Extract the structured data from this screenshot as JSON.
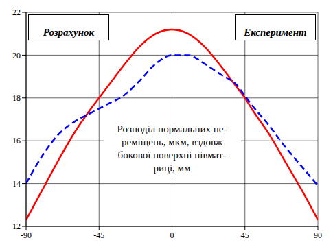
{
  "chart_data": {
    "type": "line",
    "x": [
      -90,
      -80,
      -70,
      -60,
      -50,
      -45,
      -40,
      -30,
      -20,
      -10,
      0,
      10,
      20,
      30,
      40,
      45,
      50,
      60,
      70,
      80,
      90
    ],
    "xlim": [
      -90,
      90
    ],
    "xticks": [
      -90,
      -45,
      0,
      45,
      90
    ],
    "ylim": [
      12,
      22
    ],
    "yticks": [
      12,
      14,
      16,
      18,
      20,
      22
    ],
    "grid": true,
    "annotation": [
      "Розподіл нормальних пе-",
      "реміщень, мкм, вздовж",
      "бокової поверхні півмат-",
      "риці, мм"
    ],
    "series": [
      {
        "name": "Розрахунок",
        "color": "#ff0000",
        "line_style": "solid",
        "values": [
          12.3,
          13.7,
          15.1,
          16.4,
          17.5,
          18.0,
          18.5,
          19.5,
          20.4,
          21.0,
          21.2,
          21.0,
          20.4,
          19.5,
          18.5,
          18.0,
          17.4,
          16.3,
          15.0,
          13.7,
          12.3
        ]
      },
      {
        "name": "Експеримент",
        "color": "#0000ff",
        "line_style": "dashed",
        "values": [
          14.0,
          15.3,
          16.3,
          16.9,
          17.3,
          17.5,
          17.7,
          18.1,
          18.8,
          19.6,
          20.0,
          20.0,
          19.6,
          19.1,
          18.6,
          18.1,
          17.6,
          16.7,
          15.7,
          14.8,
          13.9
        ]
      }
    ]
  }
}
